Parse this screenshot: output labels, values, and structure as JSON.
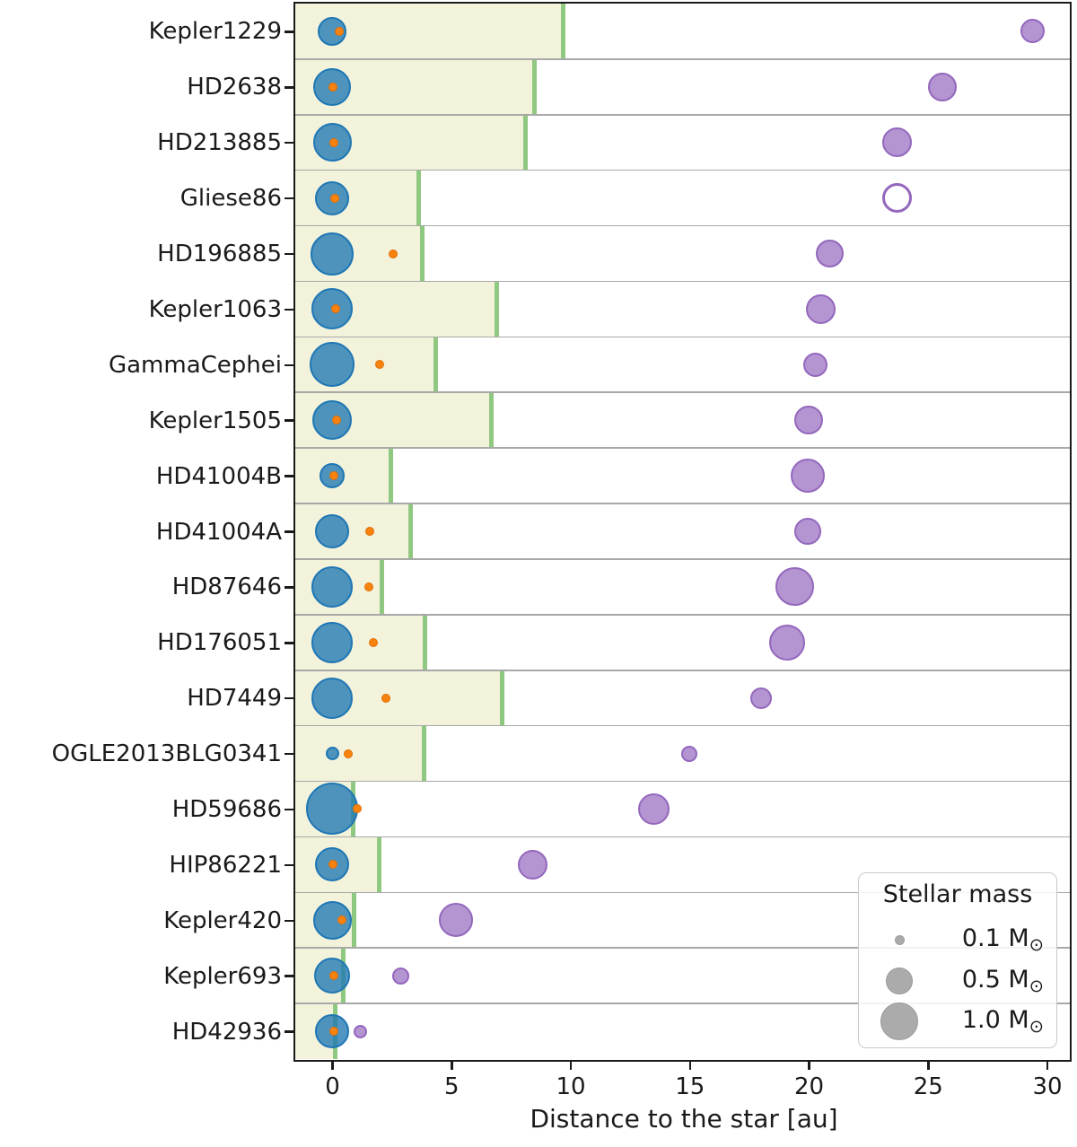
{
  "chart_data": {
    "type": "scatter",
    "xlabel": "Distance to the star [au]",
    "xticks": [
      0,
      5,
      10,
      15,
      20,
      25,
      30
    ],
    "xlim": [
      -1.55,
      30.9
    ],
    "grid": "horizontal row dividers",
    "legend": {
      "title": "Stellar mass",
      "position": "lower right",
      "solar_symbol": "⊙",
      "entries": [
        {
          "label": "0.1 M",
          "radius_px": 5.5
        },
        {
          "label": "0.5 M",
          "radius_px": 15
        },
        {
          "label": "1.0 M",
          "radius_px": 21
        }
      ]
    },
    "colors": {
      "host_star_fill": "rgba(31,119,180,0.78)",
      "host_star_edge": "#1f77b4",
      "planet_fill": "#f8820e",
      "planet_edge": "#e06f08",
      "companion_fill": "rgba(148,103,189,0.7)",
      "companion_edge": "#9467bd",
      "hz_fill": "#f3f3dc",
      "hz_edge": "#8fc880",
      "grid_line": "#a8a8a8",
      "axis": "#1a1a1a",
      "legend_circle": "#ababab"
    },
    "rows": [
      {
        "name": "Kepler1229",
        "star_radius_px": 16,
        "star_mass_msun_est": 0.58,
        "planet_au": 0.3,
        "companion_au": 29.4,
        "companion_radius_px": 13.5,
        "companion_mass_msun_est": 0.41,
        "companion_open": false,
        "hz_outer_au": 9.7
      },
      {
        "name": "HD2638",
        "star_radius_px": 21,
        "star_mass_msun_est": 1.0,
        "planet_au": 0.05,
        "companion_au": 25.6,
        "companion_radius_px": 16,
        "companion_mass_msun_est": 0.58,
        "companion_open": false,
        "hz_outer_au": 8.5
      },
      {
        "name": "HD213885",
        "star_radius_px": 21.5,
        "star_mass_msun_est": 1.05,
        "planet_au": 0.06,
        "companion_au": 23.7,
        "companion_radius_px": 16.5,
        "companion_mass_msun_est": 0.62,
        "companion_open": false,
        "hz_outer_au": 8.1
      },
      {
        "name": "Gliese86",
        "star_radius_px": 19,
        "star_mass_msun_est": 0.82,
        "planet_au": 0.13,
        "companion_au": 23.7,
        "companion_radius_px": 16.5,
        "companion_mass_msun_est": 0.62,
        "companion_open": true,
        "hz_outer_au": 3.65
      },
      {
        "name": "HD196885",
        "star_radius_px": 24,
        "star_mass_msun_est": 1.31,
        "planet_au": 2.55,
        "companion_au": 20.9,
        "companion_radius_px": 15.5,
        "companion_mass_msun_est": 0.54,
        "companion_open": false,
        "hz_outer_au": 3.8
      },
      {
        "name": "Kepler1063",
        "star_radius_px": 23,
        "star_mass_msun_est": 1.2,
        "planet_au": 0.15,
        "companion_au": 20.5,
        "companion_radius_px": 16.5,
        "companion_mass_msun_est": 0.62,
        "companion_open": false,
        "hz_outer_au": 6.9
      },
      {
        "name": "GammaCephei",
        "star_radius_px": 25,
        "star_mass_msun_est": 1.42,
        "planet_au": 2.0,
        "companion_au": 20.3,
        "companion_radius_px": 13.5,
        "companion_mass_msun_est": 0.41,
        "companion_open": false,
        "hz_outer_au": 4.35
      },
      {
        "name": "Kepler1505",
        "star_radius_px": 22,
        "star_mass_msun_est": 1.1,
        "planet_au": 0.2,
        "companion_au": 20.0,
        "companion_radius_px": 16,
        "companion_mass_msun_est": 0.58,
        "companion_open": false,
        "hz_outer_au": 6.7
      },
      {
        "name": "HD41004B",
        "star_radius_px": 14,
        "star_mass_msun_est": 0.44,
        "planet_au": 0.06,
        "companion_au": 19.95,
        "companion_radius_px": 19,
        "companion_mass_msun_est": 0.82,
        "companion_open": false,
        "hz_outer_au": 2.45
      },
      {
        "name": "HD41004A",
        "star_radius_px": 19,
        "star_mass_msun_est": 0.82,
        "planet_au": 1.6,
        "companion_au": 19.95,
        "companion_radius_px": 15,
        "companion_mass_msun_est": 0.51,
        "companion_open": false,
        "hz_outer_au": 3.3
      },
      {
        "name": "HD87646",
        "star_radius_px": 23,
        "star_mass_msun_est": 1.2,
        "planet_au": 1.56,
        "companion_au": 19.4,
        "companion_radius_px": 21.5,
        "companion_mass_msun_est": 1.05,
        "companion_open": false,
        "hz_outer_au": 2.1
      },
      {
        "name": "HD176051",
        "star_radius_px": 23,
        "star_mass_msun_est": 1.2,
        "planet_au": 1.74,
        "companion_au": 19.1,
        "companion_radius_px": 20,
        "companion_mass_msun_est": 0.91,
        "companion_open": false,
        "hz_outer_au": 3.9
      },
      {
        "name": "HD7449",
        "star_radius_px": 23,
        "star_mass_msun_est": 1.2,
        "planet_au": 2.25,
        "companion_au": 18.0,
        "companion_radius_px": 12,
        "companion_mass_msun_est": 0.33,
        "companion_open": false,
        "hz_outer_au": 7.15
      },
      {
        "name": "OGLE2013BLG0341",
        "star_radius_px": 7.5,
        "star_mass_msun_est": 0.13,
        "planet_au": 0.67,
        "companion_au": 15.0,
        "companion_radius_px": 9,
        "companion_mass_msun_est": 0.18,
        "companion_open": false,
        "hz_outer_au": 3.85
      },
      {
        "name": "HD59686",
        "star_radius_px": 29,
        "star_mass_msun_est": 1.91,
        "planet_au": 1.07,
        "companion_au": 13.5,
        "companion_radius_px": 17.5,
        "companion_mass_msun_est": 0.69,
        "companion_open": false,
        "hz_outer_au": 0.87
      },
      {
        "name": "HIP86221",
        "star_radius_px": 19,
        "star_mass_msun_est": 0.82,
        "planet_au": 0.05,
        "companion_au": 8.4,
        "companion_radius_px": 16.5,
        "companion_mass_msun_est": 0.62,
        "companion_open": false,
        "hz_outer_au": 1.97
      },
      {
        "name": "Kepler420",
        "star_radius_px": 21.5,
        "star_mass_msun_est": 1.05,
        "planet_au": 0.4,
        "companion_au": 5.2,
        "companion_radius_px": 19,
        "companion_mass_msun_est": 0.82,
        "companion_open": false,
        "hz_outer_au": 0.94
      },
      {
        "name": "Kepler693",
        "star_radius_px": 20,
        "star_mass_msun_est": 0.91,
        "planet_au": 0.08,
        "companion_au": 2.87,
        "companion_radius_px": 9.5,
        "companion_mass_msun_est": 0.2,
        "companion_open": false,
        "hz_outer_au": 0.46
      },
      {
        "name": "HD42936",
        "star_radius_px": 19,
        "star_mass_msun_est": 0.82,
        "planet_au": 0.07,
        "companion_au": 1.18,
        "companion_radius_px": 7.5,
        "companion_mass_msun_est": 0.13,
        "companion_open": false,
        "hz_outer_au": 0.15
      }
    ]
  }
}
